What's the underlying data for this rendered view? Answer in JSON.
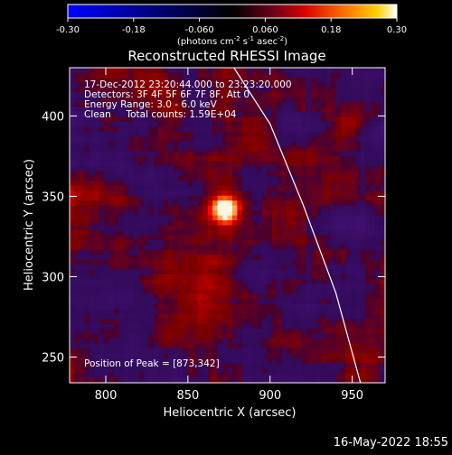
{
  "colorbar": {
    "ticks": [
      "-0.30",
      "-0.18",
      "-0.060",
      "0.060",
      "0.18",
      "0.30"
    ],
    "tick_values": [
      -0.3,
      -0.18,
      -0.06,
      0.06,
      0.18,
      0.3
    ],
    "range": [
      -0.3,
      0.3
    ],
    "units_main": "(photons cm",
    "units_sup1": "-2",
    "units_mid1": " s",
    "units_sup2": "-1",
    "units_mid2": " asec",
    "units_sup3": "-2",
    "units_end": ")"
  },
  "chart_data": {
    "type": "heatmap",
    "title": "Reconstructed RHESSI Image",
    "xlabel": "Heliocentric X (arcsec)",
    "ylabel": "Heliocentric Y (arcsec)",
    "xlim": [
      778,
      970
    ],
    "ylim": [
      234,
      430
    ],
    "xticks": [
      800,
      850,
      900,
      950
    ],
    "yticks": [
      250,
      300,
      350,
      400
    ],
    "annotations": [
      "17-Dec-2012 23:20:44.000 to 23:23:20.000",
      "Detectors: 3F 4F 5F 6F 7F 8F, Att 0",
      "Energy Range: 3.0 - 6.0 keV",
      "Clean     Total counts: 1.59E+04"
    ],
    "peak_label": "Position of Peak = [873,342]",
    "peak": [
      873,
      342
    ],
    "limb_curve": [
      [
        878,
        430
      ],
      [
        900,
        395
      ],
      [
        920,
        345
      ],
      [
        940,
        290
      ],
      [
        955,
        234
      ]
    ]
  },
  "footer": {
    "timestamp": "16-May-2022 18:55"
  },
  "colors": {
    "background": "#000000",
    "limb": "#ffffff"
  }
}
